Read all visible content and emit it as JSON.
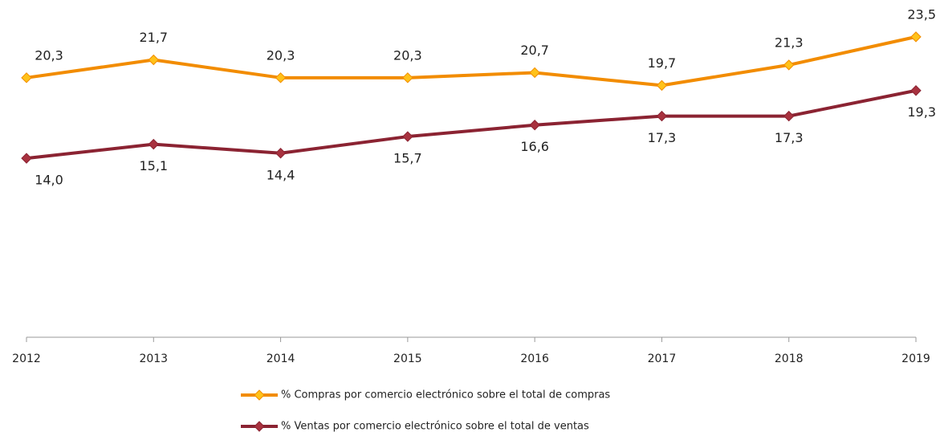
{
  "chart_data": {
    "type": "line",
    "categories": [
      "2012",
      "2013",
      "2014",
      "2015",
      "2016",
      "2017",
      "2018",
      "2019"
    ],
    "series": [
      {
        "name": "% Compras por comercio electrónico sobre el total de compras",
        "color": "#f28c00",
        "marker_color": "#ffc21a",
        "values": [
          20.3,
          21.7,
          20.3,
          20.3,
          20.7,
          19.7,
          21.3,
          23.5
        ],
        "value_labels": [
          "20,3",
          "21,7",
          "20,3",
          "20,3",
          "20,7",
          "19,7",
          "21,3",
          "23,5"
        ]
      },
      {
        "name": "% Ventas por comercio electrónico sobre el total de ventas",
        "color": "#8b2332",
        "marker_color": "#a8323f",
        "values": [
          14.0,
          15.1,
          14.4,
          15.7,
          16.6,
          17.3,
          17.3,
          19.3
        ],
        "value_labels": [
          "14,0",
          "15,1",
          "14,4",
          "15,7",
          "16,6",
          "17,3",
          "17,3",
          "19,3"
        ]
      }
    ],
    "ylim": [
      0,
      25
    ]
  }
}
